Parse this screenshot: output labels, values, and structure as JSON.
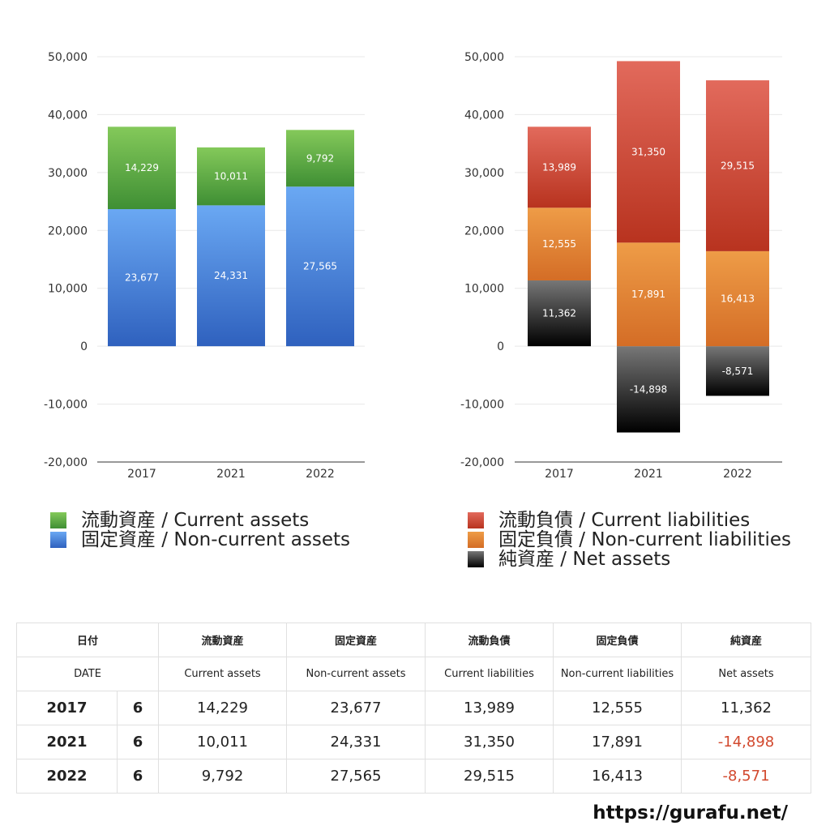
{
  "chart_data": [
    {
      "type": "bar",
      "stacked": true,
      "categories": [
        "2017",
        "2021",
        "2022"
      ],
      "ylim": [
        -20000,
        50000
      ],
      "yticks": [
        50000,
        40000,
        30000,
        20000,
        10000,
        0,
        -10000,
        -20000
      ],
      "ytick_labels": [
        "50,000",
        "40,000",
        "30,000",
        "20,000",
        "10,000",
        "0",
        "-10,000",
        "-20,000"
      ],
      "series": [
        {
          "name": "固定資産 / Non-current assets",
          "values": [
            23677,
            24331,
            27565
          ],
          "labels": [
            "23,677",
            "24,331",
            "27,565"
          ],
          "color": "#4a86d8"
        },
        {
          "name": "流動資産 / Current assets",
          "values": [
            14229,
            10011,
            9792
          ],
          "labels": [
            "14,229",
            "10,011",
            "9,792"
          ],
          "color": "#5fae45"
        }
      ],
      "legend": "bottom"
    },
    {
      "type": "bar",
      "stacked": true,
      "categories": [
        "2017",
        "2021",
        "2022"
      ],
      "ylim": [
        -20000,
        50000
      ],
      "yticks": [
        50000,
        40000,
        30000,
        20000,
        10000,
        0,
        -10000,
        -20000
      ],
      "ytick_labels": [
        "50,000",
        "40,000",
        "30,000",
        "20,000",
        "10,000",
        "0",
        "-10,000",
        "-20,000"
      ],
      "series": [
        {
          "name": "純資産 / Net assets",
          "values": [
            11362,
            -14898,
            -8571
          ],
          "labels": [
            "11,362",
            "-14,898",
            "-8,571"
          ],
          "color": "#333333"
        },
        {
          "name": "固定負債 / Non-current liabilities",
          "values": [
            12555,
            17891,
            16413
          ],
          "labels": [
            "12,555",
            "17,891",
            "16,413"
          ],
          "color": "#e2873a"
        },
        {
          "name": "流動負債 / Current liabilities",
          "values": [
            13989,
            31350,
            29515
          ],
          "labels": [
            "13,989",
            "31,350",
            "29,515"
          ],
          "color": "#cf4a38"
        }
      ],
      "legend": "bottom"
    }
  ],
  "legend_left": [
    "流動資産 / Current assets",
    "固定資産 / Non-current assets"
  ],
  "legend_right": [
    "流動負債 / Current liabilities",
    "固定負債 / Non-current liabilities",
    "純資産 / Net assets"
  ],
  "table": {
    "header_jp": [
      "日付",
      "流動資産",
      "固定資産",
      "流動負債",
      "固定負債",
      "純資産"
    ],
    "header_en": [
      "DATE",
      "Current assets",
      "Non-current assets",
      "Current liabilities",
      "Non-current liabilities",
      "Net assets"
    ],
    "rows": [
      {
        "year": "2017",
        "month": "6",
        "values": [
          "14,229",
          "23,677",
          "13,989",
          "12,555",
          "11,362"
        ]
      },
      {
        "year": "2021",
        "month": "6",
        "values": [
          "10,011",
          "24,331",
          "31,350",
          "17,891",
          "-14,898"
        ]
      },
      {
        "year": "2022",
        "month": "6",
        "values": [
          "9,792",
          "27,565",
          "29,515",
          "16,413",
          "-8,571"
        ]
      }
    ]
  },
  "site_url": "https://gurafu.net/"
}
